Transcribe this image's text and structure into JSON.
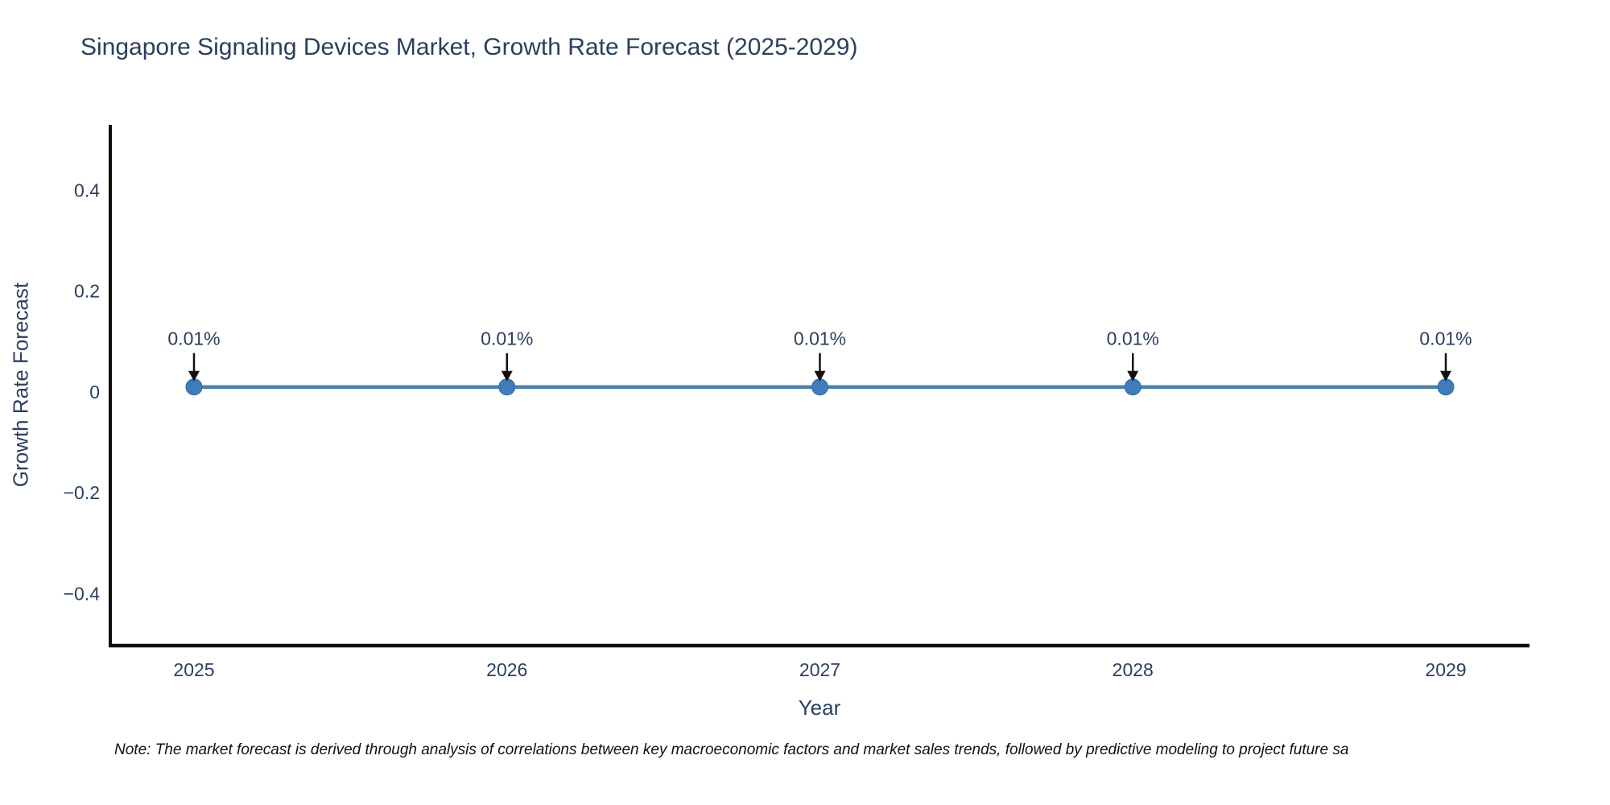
{
  "title": "Singapore Signaling Devices Market, Growth Rate Forecast (2025-2029)",
  "note": "Note: The market forecast is derived through analysis of correlations between key macroeconomic factors and market sales trends, followed by predictive modeling to project future sa",
  "chart_data": {
    "type": "line",
    "x": [
      "2025",
      "2026",
      "2027",
      "2028",
      "2029"
    ],
    "series": [
      {
        "name": "Growth Rate Forecast",
        "values": [
          0.01,
          0.01,
          0.01,
          0.01,
          0.01
        ]
      }
    ],
    "point_labels": [
      "0.01%",
      "0.01%",
      "0.01%",
      "0.01%",
      "0.01%"
    ],
    "title": "Singapore Signaling Devices Market, Growth Rate Forecast (2025-2029)",
    "xlabel": "Year",
    "ylabel": "Growth Rate Forecast",
    "ylim": [
      -0.503,
      0.53
    ],
    "yticks": [
      0.4,
      0.2,
      0,
      -0.2,
      -0.4
    ],
    "grid": false,
    "legend": false,
    "colors": {
      "line": "#4e7fab",
      "marker": "#3f7cb9",
      "marker_edge": "#2e6ca3",
      "axis": "#0f0f0f",
      "tick_text": "#2a3f5f",
      "annotation_text": "#2a3f5f",
      "annotation_arrow": "#111111",
      "background": "#ffffff"
    }
  }
}
